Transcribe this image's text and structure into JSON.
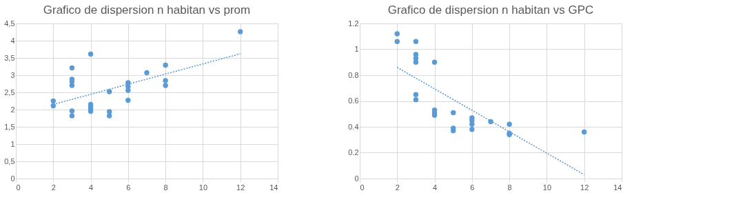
{
  "chart_data": [
    {
      "type": "scatter",
      "title": "Grafico de dispersion n habitan vs prom",
      "marker": "circle",
      "grid": true,
      "xlim": [
        0,
        14
      ],
      "xticks": [
        0,
        2,
        4,
        6,
        8,
        10,
        12,
        14
      ],
      "ylim": [
        0,
        4.5
      ],
      "yticks": [
        0,
        {
          "value": 0.5,
          "label": "0,5"
        },
        1,
        {
          "value": 1.5,
          "label": "1,5"
        },
        2,
        {
          "value": 2.5,
          "label": "2,5"
        },
        3,
        {
          "value": 3.5,
          "label": "3,5"
        },
        4,
        {
          "value": 4.5,
          "label": "4,5"
        }
      ],
      "series": [
        {
          "color": "#5b9bd5",
          "x": [
            2,
            2,
            3,
            3,
            3,
            3,
            3,
            3,
            4,
            4,
            4,
            4,
            4,
            5,
            5,
            5,
            6,
            6,
            6,
            6,
            7,
            8,
            8,
            8,
            12
          ],
          "values": [
            2.25,
            2.11,
            3.21,
            2.88,
            2.81,
            2.7,
            1.96,
            1.82,
            3.61,
            2.15,
            2.08,
            2.01,
            1.95,
            2.52,
            1.94,
            1.82,
            2.78,
            2.67,
            2.56,
            2.27,
            3.07,
            3.29,
            2.84,
            2.7,
            4.26
          ]
        },
        {
          "type": "line",
          "marker": "none",
          "line_style": "dotted",
          "color": "#5b9bd5",
          "x": [
            2,
            12
          ],
          "values": [
            2.15,
            3.62
          ]
        }
      ]
    },
    {
      "type": "scatter",
      "title": "Grafico de dispersion n habitan vs GPC",
      "marker": "circle",
      "grid": true,
      "xlim": [
        0,
        14
      ],
      "xticks": [
        0,
        2,
        4,
        6,
        8,
        10,
        12,
        14
      ],
      "ylim": [
        0,
        1.2
      ],
      "yticks": [
        0,
        0.2,
        0.4,
        0.6,
        0.8,
        1,
        1.2
      ],
      "series": [
        {
          "color": "#5b9bd5",
          "x": [
            2,
            2,
            3,
            3,
            3,
            3,
            3,
            3,
            4,
            4,
            4,
            4,
            5,
            5,
            5,
            6,
            6,
            6,
            6,
            7,
            8,
            8,
            8,
            12
          ],
          "values": [
            1.12,
            1.06,
            1.06,
            0.96,
            0.93,
            0.9,
            0.65,
            0.61,
            0.9,
            0.53,
            0.51,
            0.49,
            0.51,
            0.39,
            0.37,
            0.47,
            0.45,
            0.42,
            0.38,
            0.44,
            0.42,
            0.35,
            0.34,
            0.36
          ]
        },
        {
          "type": "line",
          "marker": "none",
          "line_style": "dotted",
          "color": "#5b9bd5",
          "x": [
            2,
            12
          ],
          "values": [
            0.86,
            0.03
          ]
        }
      ]
    }
  ]
}
